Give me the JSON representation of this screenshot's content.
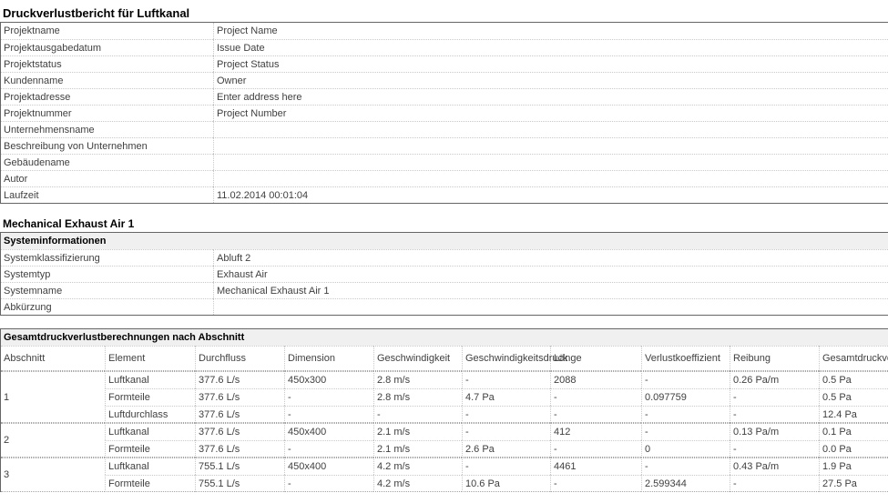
{
  "page": {
    "title": "Druckverlustbericht für Luftkanal"
  },
  "project_info": {
    "rows": [
      {
        "label": "Projektname",
        "value": "Project Name"
      },
      {
        "label": "Projektausgabedatum",
        "value": "Issue Date"
      },
      {
        "label": "Projektstatus",
        "value": "Project Status"
      },
      {
        "label": "Kundenname",
        "value": "Owner"
      },
      {
        "label": "Projektadresse",
        "value": "Enter address here"
      },
      {
        "label": "Projektnummer",
        "value": "Project Number"
      },
      {
        "label": "Unternehmensname",
        "value": ""
      },
      {
        "label": "Beschreibung von Unternehmen",
        "value": ""
      },
      {
        "label": "Gebäudename",
        "value": ""
      },
      {
        "label": "Autor",
        "value": ""
      },
      {
        "label": "Laufzeit",
        "value": "11.02.2014 00:01:04"
      }
    ]
  },
  "system_section": {
    "heading": "Mechanical Exhaust Air 1",
    "table_title": "Systeminformationen",
    "rows": [
      {
        "label": "Systemklassifizierung",
        "value": "Abluft 2"
      },
      {
        "label": "Systemtyp",
        "value": "Exhaust Air"
      },
      {
        "label": "Systemname",
        "value": "Mechanical Exhaust Air 1"
      },
      {
        "label": "Abkürzung",
        "value": ""
      }
    ]
  },
  "loss_table": {
    "title": "Gesamtdruckverlustberechnungen nach Abschnitt",
    "columns": [
      "Abschnitt",
      "Element",
      "Durchfluss",
      "Dimension",
      "Geschwindigkeit",
      "Geschwindigkeitsdruck",
      "Länge",
      "Verlustkoeffizient",
      "Reibung",
      "Gesamtdruckverlust"
    ],
    "groups": [
      {
        "section": "1",
        "rows": [
          [
            "Luftkanal",
            "377.6 L/s",
            "450x300",
            "2.8 m/s",
            "-",
            "2088",
            "-",
            "0.26 Pa/m",
            "0.5 Pa"
          ],
          [
            "Formteile",
            "377.6 L/s",
            "-",
            "2.8 m/s",
            "4.7 Pa",
            "-",
            "0.097759",
            "-",
            "0.5 Pa"
          ],
          [
            "Luftdurchlass",
            "377.6 L/s",
            "-",
            "-",
            "-",
            "-",
            "-",
            "-",
            "12.4 Pa"
          ]
        ]
      },
      {
        "section": "2",
        "rows": [
          [
            "Luftkanal",
            "377.6 L/s",
            "450x400",
            "2.1 m/s",
            "-",
            "412",
            "-",
            "0.13 Pa/m",
            "0.1 Pa"
          ],
          [
            "Formteile",
            "377.6 L/s",
            "-",
            "2.1 m/s",
            "2.6 Pa",
            "-",
            "0",
            "-",
            "0.0 Pa"
          ]
        ]
      },
      {
        "section": "3",
        "rows": [
          [
            "Luftkanal",
            "755.1 L/s",
            "450x400",
            "4.2 m/s",
            "-",
            "4461",
            "-",
            "0.43 Pa/m",
            "1.9 Pa"
          ],
          [
            "Formteile",
            "755.1 L/s",
            "-",
            "4.2 m/s",
            "10.6 Pa",
            "-",
            "2.599344",
            "-",
            "27.5 Pa"
          ]
        ]
      }
    ]
  },
  "colors": {
    "table_header_bg": "#f0f0f0",
    "outer_border": "#666666",
    "row_separator": "#c9c9c9",
    "group_separator": "#a3a3a3",
    "text": "#404040",
    "heading_text": "#000000"
  }
}
